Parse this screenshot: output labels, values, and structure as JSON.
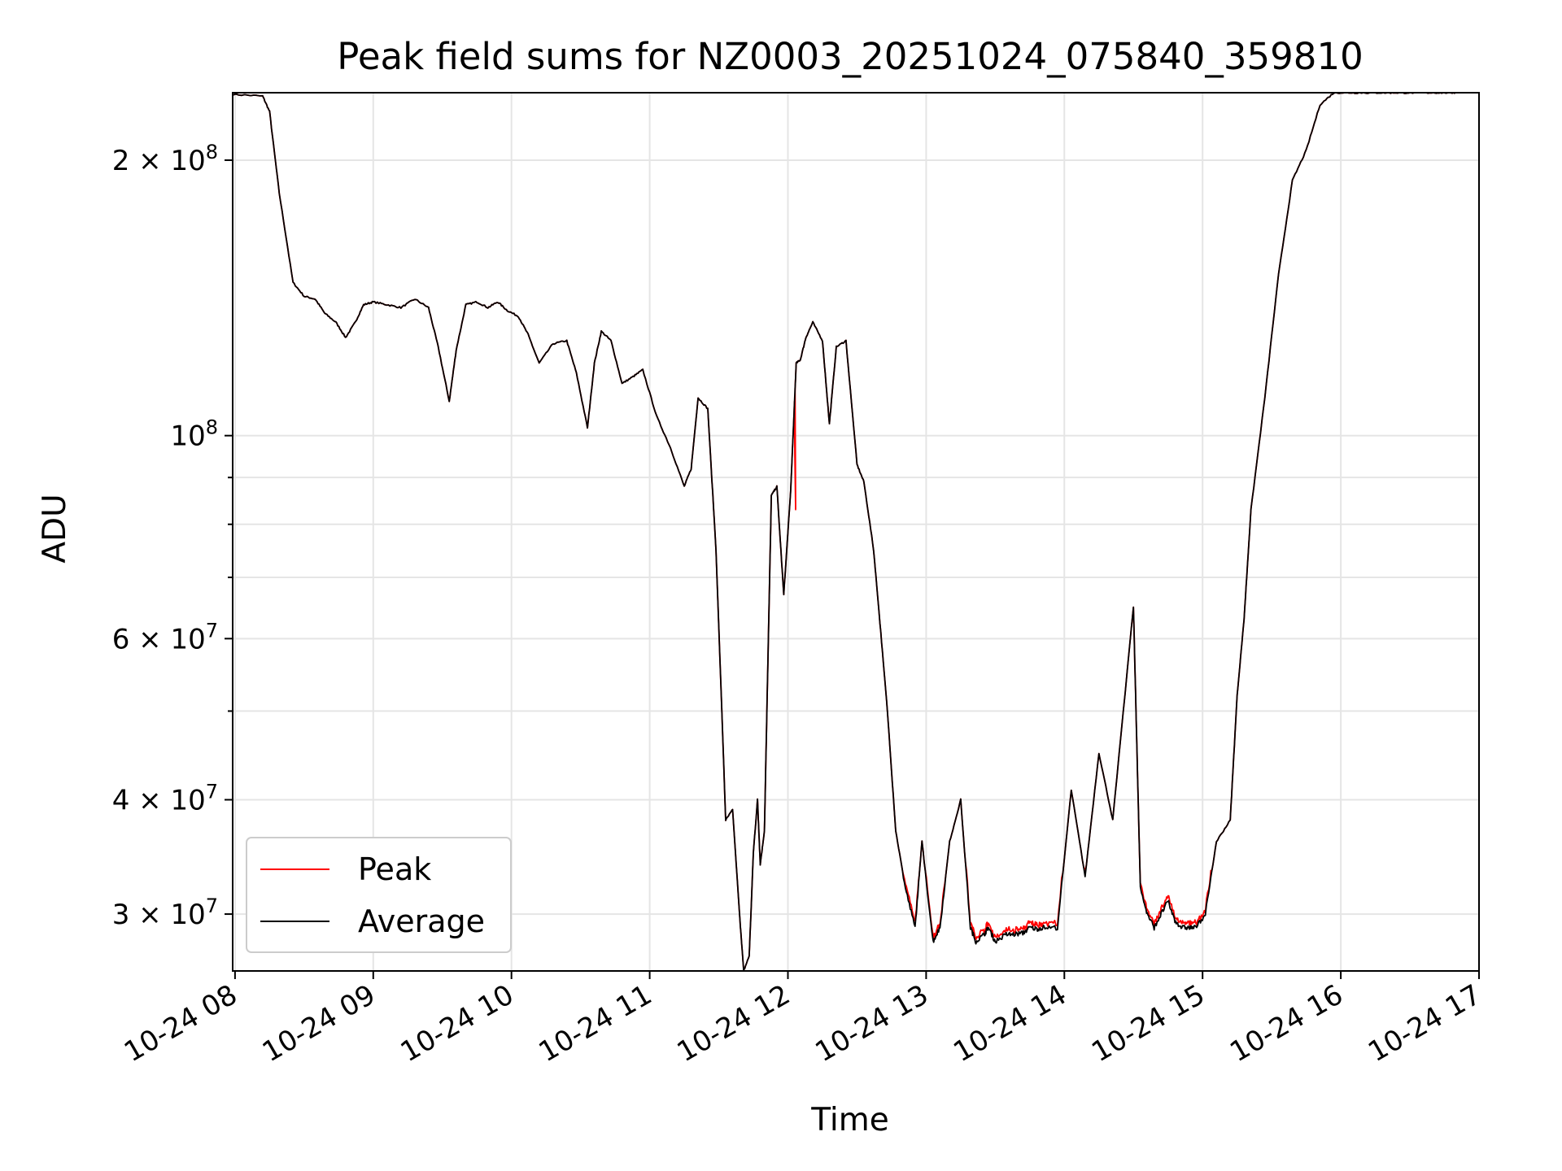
{
  "chart_data": {
    "type": "line",
    "title": "Peak field sums for NZ0003_20251024_075840_359810",
    "xlabel": "Time",
    "ylabel": "ADU",
    "yscale": "log",
    "grid": true,
    "legend_position": "lower-left",
    "xlim_hours": [
      7.983,
      17.0
    ],
    "ylim": [
      26000000,
      237000000
    ],
    "x_ticks": [
      {
        "hour": 8,
        "label": "10-24 08"
      },
      {
        "hour": 9,
        "label": "10-24 09"
      },
      {
        "hour": 10,
        "label": "10-24 10"
      },
      {
        "hour": 11,
        "label": "10-24 11"
      },
      {
        "hour": 12,
        "label": "10-24 12"
      },
      {
        "hour": 13,
        "label": "10-24 13"
      },
      {
        "hour": 14,
        "label": "10-24 14"
      },
      {
        "hour": 15,
        "label": "10-24 15"
      },
      {
        "hour": 16,
        "label": "10-24 16"
      },
      {
        "hour": 17,
        "label": "10-24 17"
      }
    ],
    "y_major_ticks": [
      {
        "value": 30000000,
        "mant": "3",
        "exp": "7"
      },
      {
        "value": 40000000,
        "mant": "4",
        "exp": "7"
      },
      {
        "value": 60000000,
        "mant": "6",
        "exp": "7"
      },
      {
        "value": 100000000,
        "mant": "",
        "exp": "8"
      },
      {
        "value": 200000000,
        "mant": "2",
        "exp": "8"
      }
    ],
    "y_minor_ticks": [
      50000000,
      70000000,
      80000000,
      90000000
    ],
    "series": [
      {
        "name": "Average",
        "color": "#000000",
        "x_hours": [
          7.983,
          8.2,
          8.25,
          8.32,
          8.42,
          8.5,
          8.58,
          8.65,
          8.73,
          8.8,
          8.87,
          8.93,
          9.0,
          9.1,
          9.2,
          9.3,
          9.4,
          9.47,
          9.55,
          9.6,
          9.67,
          9.75,
          9.83,
          9.9,
          9.97,
          10.05,
          10.12,
          10.2,
          10.3,
          10.4,
          10.47,
          10.55,
          10.6,
          10.65,
          10.72,
          10.8,
          10.88,
          10.95,
          11.05,
          11.15,
          11.25,
          11.3,
          11.35,
          11.42,
          11.48,
          11.55,
          11.6,
          11.65,
          11.68,
          11.72,
          11.75,
          11.78,
          11.8,
          11.83,
          11.88,
          11.92,
          11.97,
          12.02,
          12.06,
          12.09,
          12.13,
          12.18,
          12.25,
          12.3,
          12.35,
          12.42,
          12.5,
          12.55,
          12.62,
          12.66,
          12.72,
          12.78,
          12.85,
          12.92,
          12.97,
          13.05,
          13.1,
          13.17,
          13.25,
          13.32,
          13.36,
          13.42,
          13.45,
          13.5,
          13.58,
          13.63,
          13.7,
          13.75,
          13.8,
          13.85,
          13.95,
          14.05,
          14.15,
          14.25,
          14.35,
          14.5,
          14.55,
          14.6,
          14.65,
          14.7,
          14.75,
          14.8,
          14.85,
          14.9,
          14.95,
          15.02,
          15.1,
          15.2,
          15.25,
          15.3,
          15.35,
          15.45,
          15.55,
          15.65,
          15.75,
          15.85,
          15.95,
          16.05,
          16.15,
          16.25,
          16.35,
          16.45,
          16.55,
          16.65,
          16.75,
          16.83
        ],
        "values": [
          236000000,
          235000000,
          226000000,
          184000000,
          147000000,
          142000000,
          141000000,
          136000000,
          133000000,
          128000000,
          133000000,
          139000000,
          140000000,
          139000000,
          138000000,
          141000000,
          138000000,
          125000000,
          109000000,
          124000000,
          139000000,
          140000000,
          138000000,
          140000000,
          137000000,
          135000000,
          129000000,
          120000000,
          126000000,
          127000000,
          117000000,
          102000000,
          120000000,
          130000000,
          127000000,
          114000000,
          116000000,
          118000000,
          105000000,
          97000000,
          88000000,
          92000000,
          110000000,
          107000000,
          75000000,
          38000000,
          39000000,
          30000000,
          26000000,
          27000000,
          35000000,
          40000000,
          34000000,
          37000000,
          86000000,
          88000000,
          67000000,
          87000000,
          120000000,
          121000000,
          128000000,
          133000000,
          127000000,
          103000000,
          125000000,
          127000000,
          93000000,
          89000000,
          75000000,
          64000000,
          50000000,
          37000000,
          32000000,
          29000000,
          36000000,
          28000000,
          29000000,
          36000000,
          40000000,
          29000000,
          28000000,
          28500000,
          29000000,
          28000000,
          28500000,
          28500000,
          28600000,
          29000000,
          28900000,
          29000000,
          29000000,
          41000000,
          33000000,
          45000000,
          38000000,
          65000000,
          32000000,
          30000000,
          29000000,
          30000000,
          31000000,
          29500000,
          29000000,
          29000000,
          29000000,
          30000000,
          36000000,
          38000000,
          52000000,
          63000000,
          83000000,
          110000000,
          150000000,
          190000000,
          205000000,
          230000000,
          237000000,
          237000000,
          237000000,
          237000000,
          237000000,
          237000000,
          237000000,
          237000000,
          237000000,
          237000000
        ]
      },
      {
        "name": "Peak",
        "color": "#ff0000",
        "note": "closely tracks Average, slightly above in noisy low segments, with a spike near 12:03"
      }
    ]
  }
}
